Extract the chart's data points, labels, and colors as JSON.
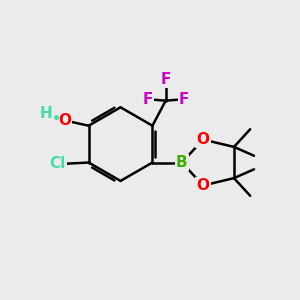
{
  "bg_color": "#ebebeb",
  "bond_color": "#000000",
  "bond_width": 1.8,
  "atom_colors": {
    "O": "#ff0000",
    "B": "#3cb000",
    "Cl": "#44ddaa",
    "F": "#cc00cc",
    "OH_O": "#ff0000",
    "OH_H": "#44ddaa"
  },
  "font_size_atoms": 11,
  "font_size_methyl": 9
}
